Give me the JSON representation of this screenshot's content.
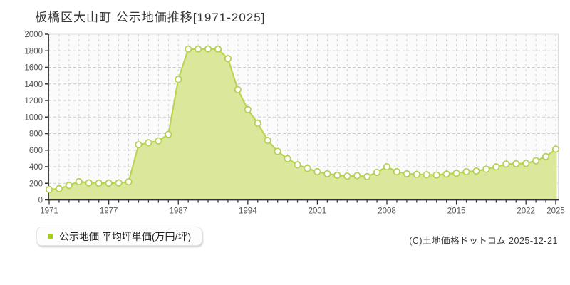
{
  "title": "板橋区大山町 公示地価推移[1971-2025]",
  "legend": {
    "label": "公示地価 平均坪単価(万円/坪)",
    "marker_color": "#a8cc22"
  },
  "copyright": "(C)土地価格ドットコム 2025-12-21",
  "colors": {
    "area_fill": "#dbe89c",
    "line": "#b9d552",
    "marker_fill": "#ffffff",
    "marker_stroke": "#b3d04e",
    "axis": "#333333",
    "grid": "#cccccc",
    "tick_label": "#555555",
    "plot_bg": "#fbfbfb",
    "plot_border": "#dddddd"
  },
  "chart_data": {
    "type": "area",
    "title": "板橋区大山町 公示地価推移[1971-2025]",
    "ylabel": "平均坪単価(万円/坪)",
    "ylim": [
      0,
      2000
    ],
    "y_ticks": [
      0,
      200,
      400,
      600,
      800,
      1000,
      1200,
      1400,
      1600,
      1800,
      2000
    ],
    "grid": true,
    "legend_position": "bottom-left",
    "x_tick_labels": [
      "1971",
      "1977",
      "1987",
      "1994",
      "2001",
      "2008",
      "2015",
      "2022",
      "2025"
    ],
    "x_tick_indices": [
      0,
      6,
      13,
      20,
      27,
      34,
      41,
      48,
      51
    ],
    "note": "years 1980-1982 have no data points",
    "years": [
      1971,
      1972,
      1973,
      1974,
      1975,
      1976,
      1977,
      1978,
      1979,
      1983,
      1984,
      1985,
      1986,
      1987,
      1988,
      1989,
      1990,
      1991,
      1992,
      1993,
      1994,
      1995,
      1996,
      1997,
      1998,
      1999,
      2000,
      2001,
      2002,
      2003,
      2004,
      2005,
      2006,
      2007,
      2008,
      2009,
      2010,
      2011,
      2012,
      2013,
      2014,
      2015,
      2016,
      2017,
      2018,
      2019,
      2020,
      2021,
      2022,
      2023,
      2024,
      2025
    ],
    "values": [
      125,
      135,
      175,
      220,
      205,
      202,
      202,
      205,
      218,
      665,
      690,
      712,
      790,
      1455,
      1820,
      1820,
      1822,
      1820,
      1705,
      1330,
      1090,
      925,
      718,
      585,
      497,
      423,
      380,
      340,
      315,
      298,
      287,
      292,
      281,
      332,
      400,
      340,
      315,
      308,
      304,
      300,
      312,
      321,
      340,
      348,
      370,
      398,
      432,
      436,
      440,
      472,
      522,
      612
    ]
  }
}
